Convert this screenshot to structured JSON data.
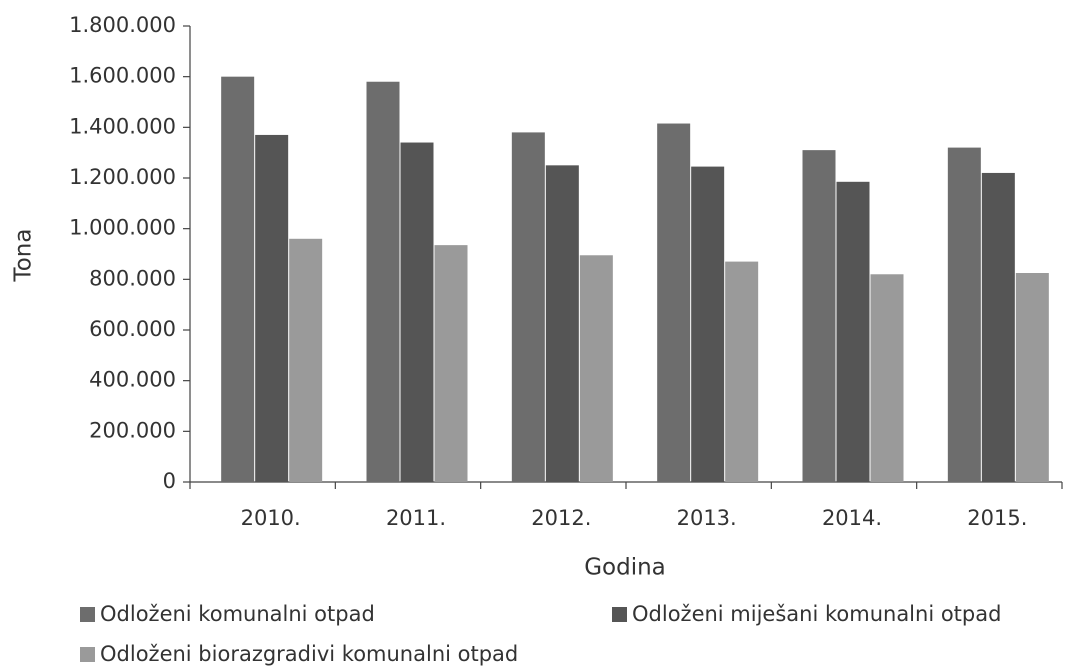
{
  "chart_data": {
    "type": "bar",
    "y_label": "Tona",
    "x_label": "Godina",
    "categories": [
      "2010.",
      "2011.",
      "2012.",
      "2013.",
      "2014.",
      "2015."
    ],
    "series": [
      {
        "name": "Odloženi komunalni otpad",
        "color": "#6d6d6d",
        "values": [
          1600000,
          1580000,
          1380000,
          1415000,
          1310000,
          1320000
        ]
      },
      {
        "name": "Odloženi miješani komunalni otpad",
        "color": "#555555",
        "values": [
          1370000,
          1340000,
          1250000,
          1245000,
          1185000,
          1220000
        ]
      },
      {
        "name": "Odloženi biorazgradivi komunalni otpad",
        "color": "#9a9a9a",
        "values": [
          960000,
          935000,
          895000,
          870000,
          820000,
          825000
        ]
      }
    ],
    "ylim": [
      0,
      1800000
    ],
    "yticks": [
      0,
      {
        "value": 200000,
        "label": "200.000"
      },
      {
        "value": 400000,
        "label": "400.000"
      },
      {
        "value": 600000,
        "label": "600.000"
      },
      {
        "value": 800000,
        "label": "800.000"
      },
      {
        "value": 1000000,
        "label": "1.000.000"
      },
      {
        "value": 1200000,
        "label": "1.200.000"
      },
      {
        "value": 1400000,
        "label": "1.400.000"
      },
      {
        "value": 1600000,
        "label": "1.600.000"
      },
      {
        "value": 1800000,
        "label": "1.800.000"
      }
    ],
    "grid": false,
    "legend": "bottom"
  }
}
